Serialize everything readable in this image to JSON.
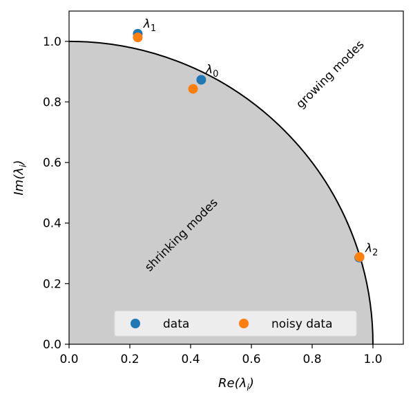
{
  "chart_data": {
    "type": "scatter",
    "title": "",
    "xlabel_base": "Re(λ",
    "xlabel_sub": "i",
    "xlabel_close": ")",
    "ylabel_base": "Im(λ",
    "ylabel_sub": "i",
    "ylabel_close": ")",
    "xlim": [
      0,
      1.1
    ],
    "ylim": [
      0,
      1.1
    ],
    "xticks": [
      0.0,
      0.2,
      0.4,
      0.6,
      0.8,
      1.0
    ],
    "yticks": [
      0.0,
      0.2,
      0.4,
      0.6,
      0.8,
      1.0
    ],
    "xtick_labels": [
      "0.0",
      "0.2",
      "0.4",
      "0.6",
      "0.8",
      "1.0"
    ],
    "ytick_labels": [
      "0.0",
      "0.2",
      "0.4",
      "0.6",
      "0.8",
      "1.0"
    ],
    "unit_circle": {
      "radius": 1.0,
      "fill": "#cccccc",
      "stroke": "#000000"
    },
    "series": [
      {
        "name": "data",
        "color": "#1f77b4",
        "points": [
          {
            "x": 0.435,
            "y": 0.873
          },
          {
            "x": 0.226,
            "y": 1.025
          },
          {
            "x": 0.955,
            "y": 0.286
          }
        ]
      },
      {
        "name": "noisy data",
        "color": "#ff7f0e",
        "points": [
          {
            "x": 0.408,
            "y": 0.843
          },
          {
            "x": 0.226,
            "y": 1.013
          },
          {
            "x": 0.956,
            "y": 0.288
          }
        ]
      }
    ],
    "point_labels": [
      {
        "base": "λ",
        "sub": "0",
        "x": 0.45,
        "y": 0.895
      },
      {
        "base": "λ",
        "sub": "1",
        "x": 0.245,
        "y": 1.045
      },
      {
        "base": "λ",
        "sub": "2",
        "x": 0.975,
        "y": 0.305
      }
    ],
    "region_labels": [
      {
        "text": "growing modes",
        "x": 0.86,
        "y": 0.89,
        "rotation": -45
      },
      {
        "text": "shrinking modes",
        "x": 0.37,
        "y": 0.36,
        "rotation": -45
      }
    ],
    "legend": {
      "position": "lower-center",
      "ncol": 2
    }
  }
}
